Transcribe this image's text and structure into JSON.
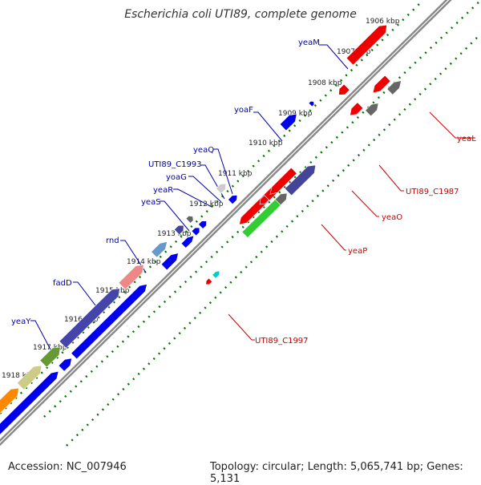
{
  "title": "Escherichia coli UTI89, complete genome",
  "footer": {
    "accession": "Accession: NC_007946",
    "summary": "Topology: circular; Length: 5,065,741 bp; Genes: 5,131"
  },
  "colors": {
    "blue": "#0000ee",
    "red": "#ee0000",
    "backbone": "#888888",
    "ticks": "#007700",
    "label_blue": "#0000aa",
    "label_red": "#cc0000"
  },
  "kbp_labels": [
    "1906 kbp",
    "1907 kbp",
    "1908 kbp",
    "1909 kbp",
    "1910 kbp",
    "1911 kbp",
    "1912 kbp",
    "1913 kbp",
    "1914 kbp",
    "1915 kbp",
    "1916 kbp",
    "1917 kbp",
    "1918 kbp"
  ],
  "gene_labels_left": [
    "yeaM",
    "yoaF",
    "yeaQ",
    "UTI89_C1993",
    "yoaG",
    "yeaR",
    "yeaS",
    "rnd",
    "fadD",
    "yeaY"
  ],
  "gene_labels_right": [
    "yeaL",
    "UTI89_C1987",
    "yeaO",
    "yeaP",
    "UTI89_C1997"
  ]
}
